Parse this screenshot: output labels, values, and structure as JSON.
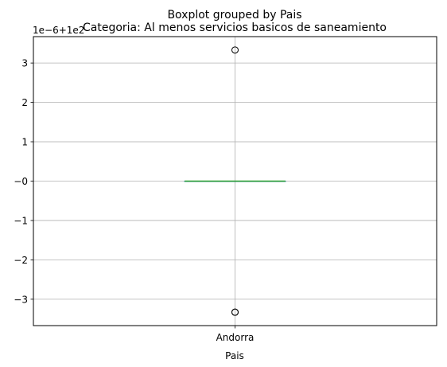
{
  "chart_data": {
    "type": "boxplot",
    "suptitle": "Boxplot grouped by Pais",
    "title": "Categoria: Al menos servicios basicos de saneamiento",
    "xlabel": "Pais",
    "ylabel": "",
    "categories": [
      "Andorra"
    ],
    "offset_label": "1e−6+1e2",
    "y_scaled_range": [
      -3.67,
      3.67
    ],
    "y_ticks": [
      -3,
      -2,
      -1,
      0,
      1,
      2,
      3
    ],
    "y_tick_labels": [
      "−3",
      "−2",
      "−1",
      "−0",
      "1",
      "2",
      "3"
    ],
    "boxes": [
      {
        "name": "Andorra",
        "q1": 0,
        "median": 0,
        "q3": 0,
        "whisker_low": 0,
        "whisker_high": 0,
        "fliers": [
          3.33,
          -3.33,
          -3.33
        ]
      }
    ],
    "grid": true,
    "colors": {
      "box": "#1f77b4",
      "median": "#2ca02c",
      "grid": "#b0b0b0"
    }
  }
}
